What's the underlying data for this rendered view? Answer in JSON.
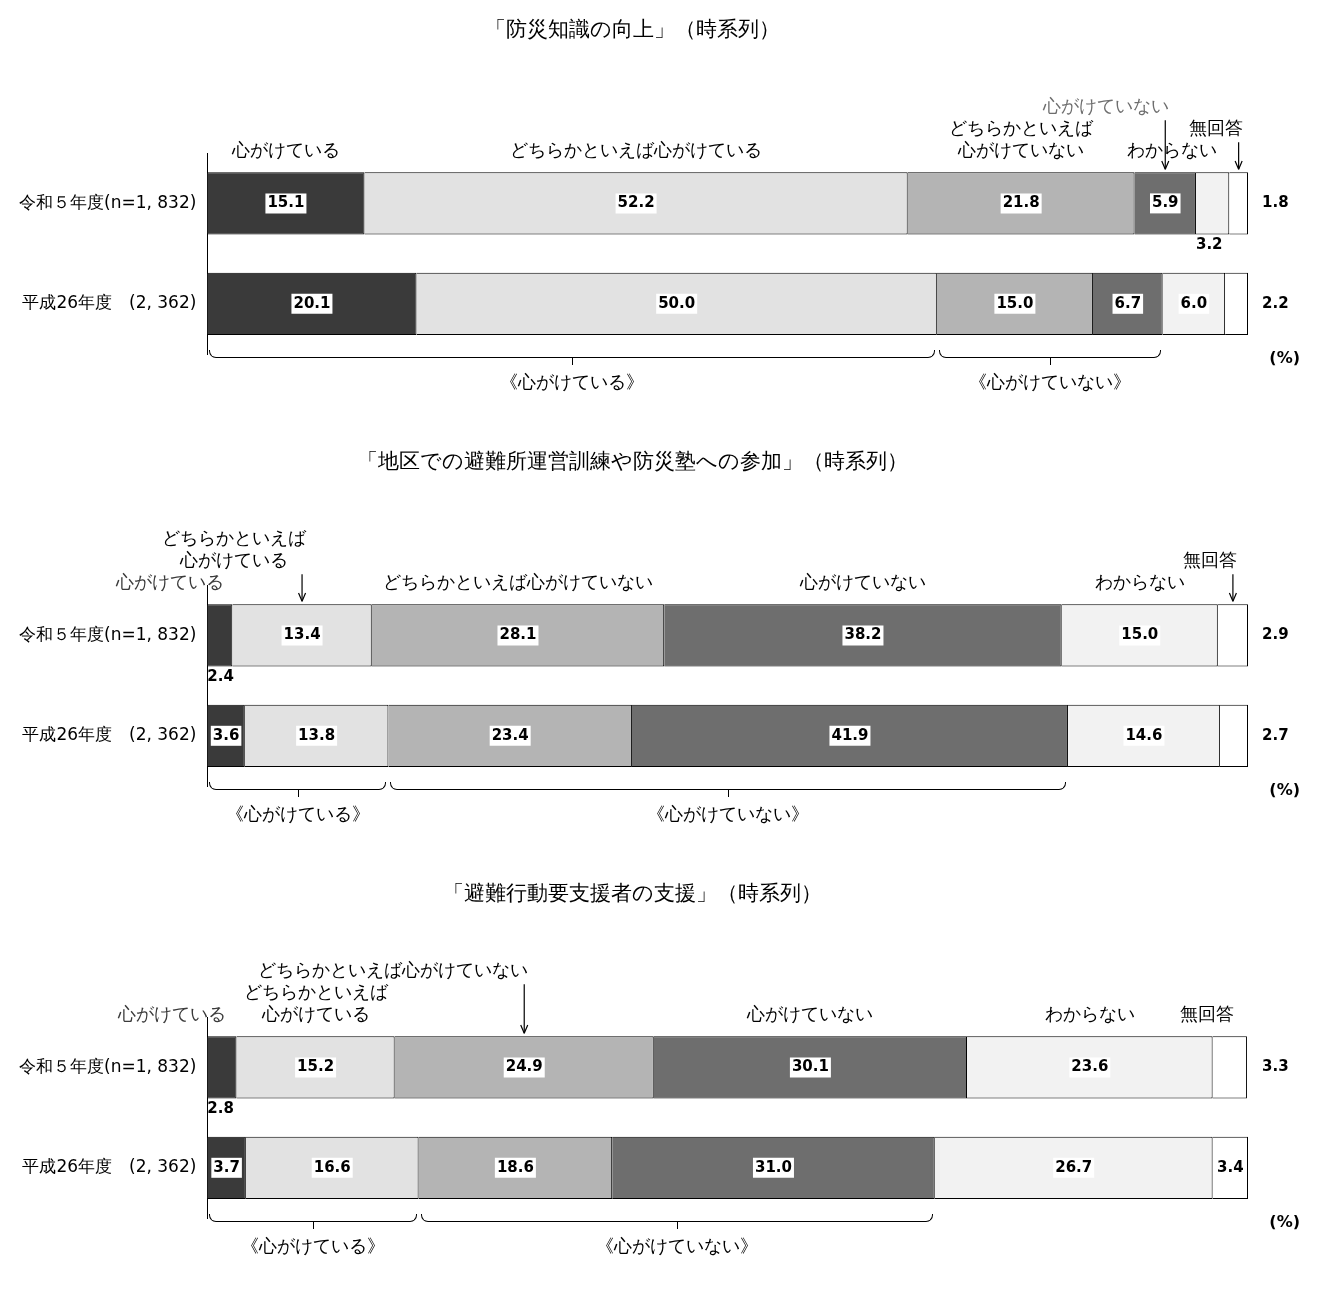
{
  "chart_data": [
    {
      "type": "bar",
      "orientation": "horizontal",
      "stacked": true,
      "title": "「防災知識の向上」（時系列）",
      "categories": [
        "令和５年度(n=1, 832)",
        "平成26年度　(2, 362)"
      ],
      "xlim": [
        0,
        100
      ],
      "tick_labels": "y",
      "legend": false,
      "series": [
        {
          "name": "心がけている",
          "color": "#3a3a3a",
          "values": [
            15.1,
            20.1
          ],
          "value_labels": [
            "15.1",
            "20.1"
          ]
        },
        {
          "name": "どちらかといえば心がけている",
          "color": "#e2e2e2",
          "values": [
            52.2,
            50.0
          ],
          "value_labels": [
            "52.2",
            "50.0"
          ]
        },
        {
          "name": "どちらかといえば心がけていない",
          "color": "#b4b4b4",
          "values": [
            21.8,
            15.0
          ],
          "value_labels": [
            "21.8",
            "15.0"
          ]
        },
        {
          "name": "心がけていない",
          "color": "#6e6e6e",
          "values": [
            5.9,
            6.7
          ],
          "value_labels": [
            "5.9",
            "6.7"
          ]
        },
        {
          "name": "わからない",
          "color": "#f2f2f2",
          "values": [
            3.2,
            6.0
          ],
          "value_labels": [
            "3.2",
            "6.0"
          ]
        },
        {
          "name": "無回答",
          "color": "#ffffff",
          "values": [
            1.8,
            2.2
          ],
          "value_labels": [
            "1.8",
            "2.2"
          ]
        }
      ],
      "annotations": [
        "《心がけている》",
        "《心がけていない》",
        "(%)"
      ]
    },
    {
      "type": "bar",
      "orientation": "horizontal",
      "stacked": true,
      "title": "「地区での避難所運営訓練や防災塾への参加」（時系列）",
      "categories": [
        "令和５年度(n=1, 832)",
        "平成26年度　(2, 362)"
      ],
      "xlim": [
        0,
        100
      ],
      "tick_labels": "y",
      "legend": false,
      "series": [
        {
          "name": "心がけている",
          "color": "#3a3a3a",
          "values": [
            2.4,
            3.6
          ],
          "value_labels": [
            "2.4",
            "3.6"
          ]
        },
        {
          "name": "どちらかといえば心がけている",
          "color": "#e2e2e2",
          "values": [
            13.4,
            13.8
          ],
          "value_labels": [
            "13.4",
            "13.8"
          ]
        },
        {
          "name": "どちらかといえば心がけていない",
          "color": "#b4b4b4",
          "values": [
            28.1,
            23.4
          ],
          "value_labels": [
            "28.1",
            "23.4"
          ]
        },
        {
          "name": "心がけていない",
          "color": "#6e6e6e",
          "values": [
            38.2,
            41.9
          ],
          "value_labels": [
            "38.2",
            "41.9"
          ]
        },
        {
          "name": "わからない",
          "color": "#f2f2f2",
          "values": [
            15.0,
            14.6
          ],
          "value_labels": [
            "15.0",
            "14.6"
          ]
        },
        {
          "name": "無回答",
          "color": "#ffffff",
          "values": [
            2.9,
            2.7
          ],
          "value_labels": [
            "2.9",
            "2.7"
          ]
        }
      ],
      "annotations": [
        "《心がけている》",
        "《心がけていない》",
        "(%)"
      ]
    },
    {
      "type": "bar",
      "orientation": "horizontal",
      "stacked": true,
      "title": "「避難行動要支援者の支援」（時系列）",
      "categories": [
        "令和５年度(n=1, 832)",
        "平成26年度　(2, 362)"
      ],
      "xlim": [
        0,
        100
      ],
      "tick_labels": "y",
      "legend": false,
      "series": [
        {
          "name": "心がけている",
          "color": "#3a3a3a",
          "values": [
            2.8,
            3.7
          ],
          "value_labels": [
            "2.8",
            "3.7"
          ]
        },
        {
          "name": "どちらかといえば心がけている",
          "color": "#e2e2e2",
          "values": [
            15.2,
            16.6
          ],
          "value_labels": [
            "15.2",
            "16.6"
          ]
        },
        {
          "name": "どちらかといえば心がけていない",
          "color": "#b4b4b4",
          "values": [
            24.9,
            18.6
          ],
          "value_labels": [
            "24.9",
            "18.6"
          ]
        },
        {
          "name": "心がけていない",
          "color": "#6e6e6e",
          "values": [
            30.1,
            31.0
          ],
          "value_labels": [
            "30.1",
            "31.0"
          ]
        },
        {
          "name": "わからない",
          "color": "#f2f2f2",
          "values": [
            23.6,
            26.7
          ],
          "value_labels": [
            "23.6",
            "26.7"
          ]
        },
        {
          "name": "無回答",
          "color": "#ffffff",
          "values": [
            3.3,
            3.4
          ],
          "value_labels": [
            "3.3",
            "3.4"
          ]
        }
      ],
      "annotations": [
        "《心がけている》",
        "《心がけていない》",
        "(%)"
      ]
    }
  ]
}
